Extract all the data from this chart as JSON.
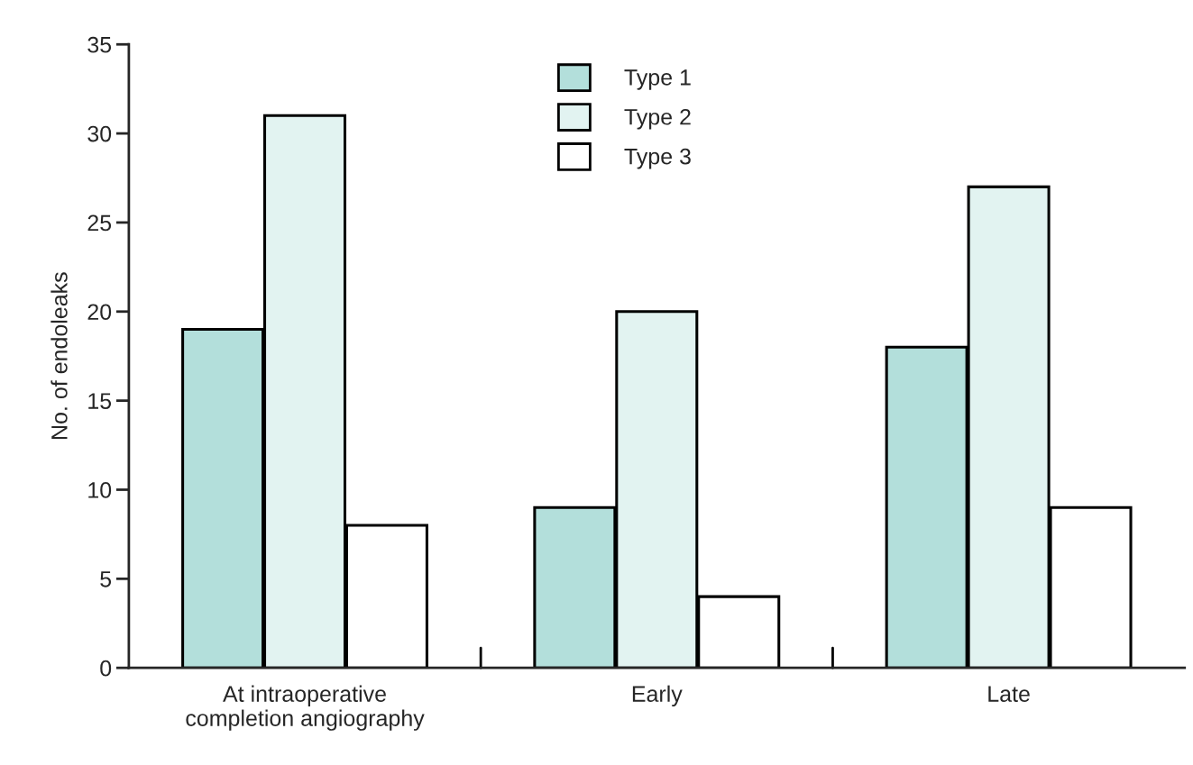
{
  "chart_data": {
    "type": "bar",
    "ylabel": "No. of endoleaks",
    "categories": [
      "At intraoperative\ncompletion angiography",
      "Early",
      "Late"
    ],
    "series": [
      {
        "name": "Type 1",
        "color": "#b3dfdb",
        "values": [
          19,
          9,
          18
        ]
      },
      {
        "name": "Type 2",
        "color": "#e2f3f1",
        "values": [
          31,
          20,
          27
        ]
      },
      {
        "name": "Type 3",
        "color": "#ffffff",
        "values": [
          8,
          4,
          9
        ]
      }
    ],
    "ylim": [
      0,
      35
    ],
    "yticks": [
      0,
      5,
      10,
      15,
      20,
      25,
      30,
      35
    ],
    "grid": false,
    "legend": "top"
  }
}
